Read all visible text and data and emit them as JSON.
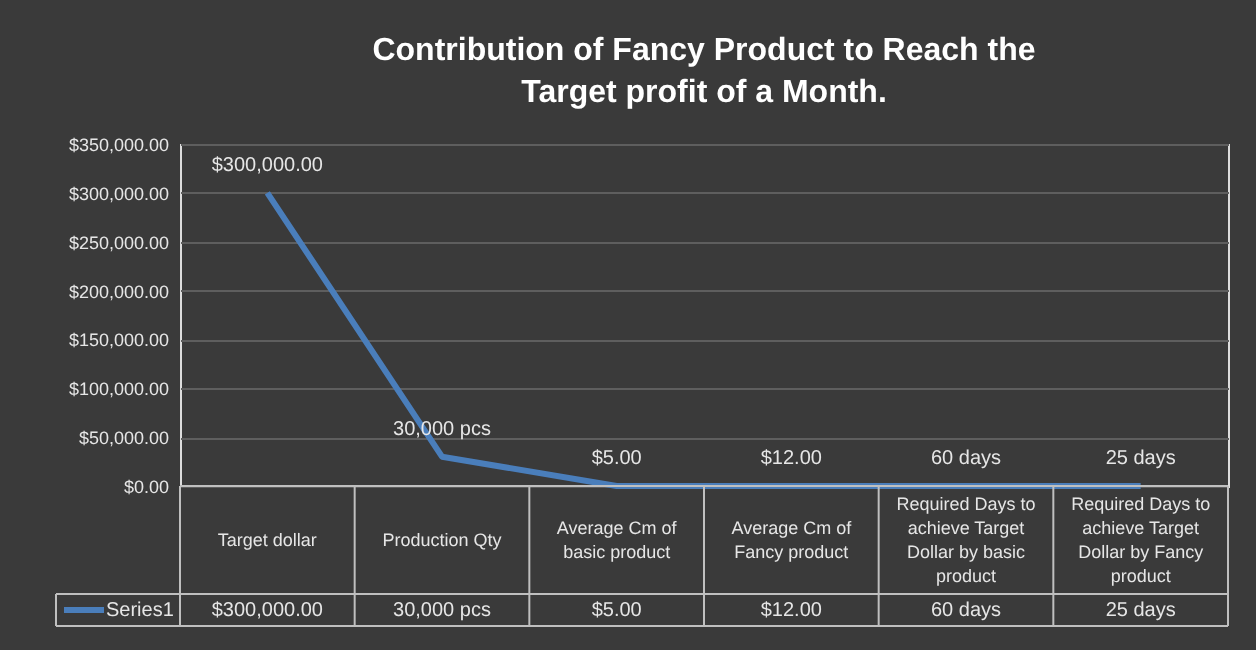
{
  "chart_data": {
    "type": "line",
    "title": "Contribution of Fancy Product to Reach the Target profit of a Month.",
    "categories": [
      "Target  dollar",
      "Production Qty",
      "Average Cm of basic product",
      "Average Cm of Fancy  product",
      "Required Days to achieve Target Dollar by basic product",
      "Required Days to achieve Target Dollar by Fancy product"
    ],
    "series": [
      {
        "name": "Series1",
        "color": "#4a7ebb",
        "values": [
          300000,
          30000,
          5,
          12,
          60,
          25
        ],
        "value_labels": [
          "$300,000.00",
          "30,000  pcs",
          "$5.00",
          "$12.00",
          "60  days",
          "25  days"
        ]
      }
    ],
    "ylim": [
      0,
      350000
    ],
    "yticks": [
      {
        "value": 0,
        "label": "$0.00"
      },
      {
        "value": 50000,
        "label": "$50,000.00"
      },
      {
        "value": 100000,
        "label": "$100,000.00"
      },
      {
        "value": 150000,
        "label": "$150,000.00"
      },
      {
        "value": 200000,
        "label": "$200,000.00"
      },
      {
        "value": 250000,
        "label": "$250,000.00"
      },
      {
        "value": 300000,
        "label": "$300,000.00"
      },
      {
        "value": 350000,
        "label": "$350,000.00"
      }
    ],
    "grid": "y",
    "legend": "bottom left",
    "marker": "none",
    "line_style": "solid"
  }
}
